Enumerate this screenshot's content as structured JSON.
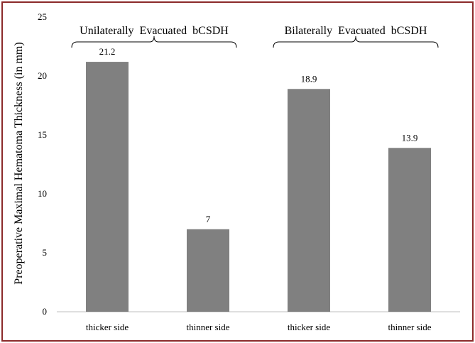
{
  "chart_data": {
    "type": "bar",
    "categories": [
      "thicker side",
      "thinner side",
      "thicker side",
      "thinner side"
    ],
    "values": [
      21.2,
      7,
      18.9,
      13.9
    ],
    "data_labels": [
      "21.2",
      "7",
      "18.9",
      "13.9"
    ],
    "groups": [
      {
        "label": "Unilaterally  Evacuated  bCSDH",
        "categories": [
          0,
          1
        ]
      },
      {
        "label": "Bilaterally  Evacuated  bCSDH",
        "categories": [
          2,
          3
        ]
      }
    ],
    "ylabel": "Preoperative  Maximal  Hematoma  Thickness  (in mm)",
    "xlabel": "",
    "ylim": [
      0,
      25
    ],
    "yticks": [
      0,
      5,
      10,
      15,
      20,
      25
    ],
    "grid": false,
    "colors": {
      "bar": "#808080",
      "border": "#8b2a2a",
      "axis": "#bfbfbf"
    }
  }
}
